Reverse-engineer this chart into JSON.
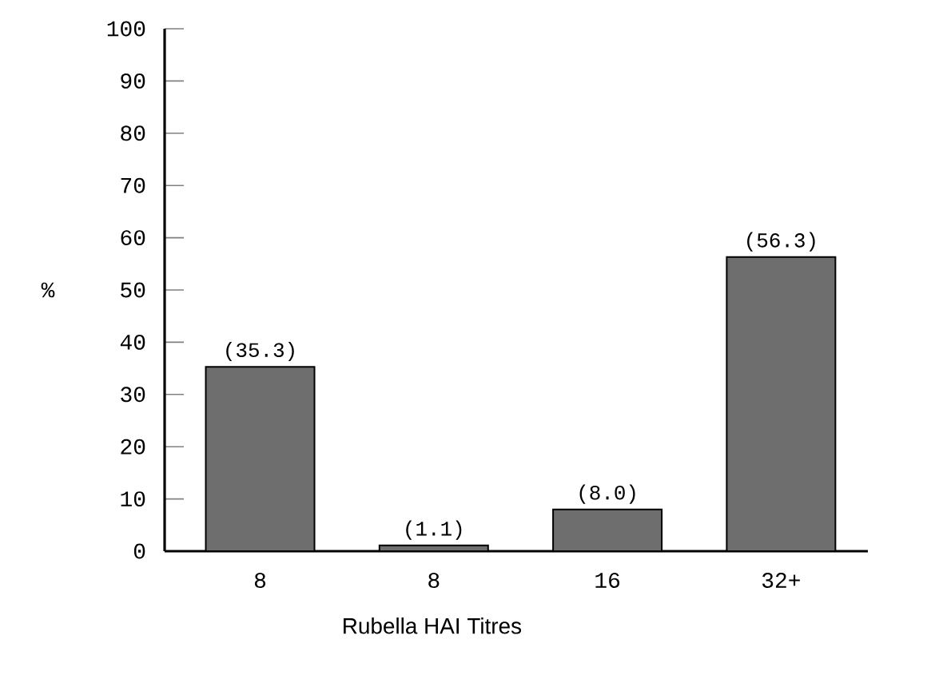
{
  "chart_data": {
    "type": "bar",
    "xlabel": "Rubella HAI Titres",
    "ylabel": "%",
    "categories": [
      "8",
      "8",
      "16",
      "32+"
    ],
    "values": [
      35.3,
      1.1,
      8.0,
      56.3
    ],
    "value_labels": [
      "(35.3)",
      "(1.1)",
      "(8.0)",
      "(56.3)"
    ],
    "color": "#6e6e6e",
    "ylim": [
      0,
      100
    ],
    "yticks": [
      0,
      10,
      20,
      30,
      40,
      50,
      60,
      70,
      80,
      90,
      100
    ]
  }
}
